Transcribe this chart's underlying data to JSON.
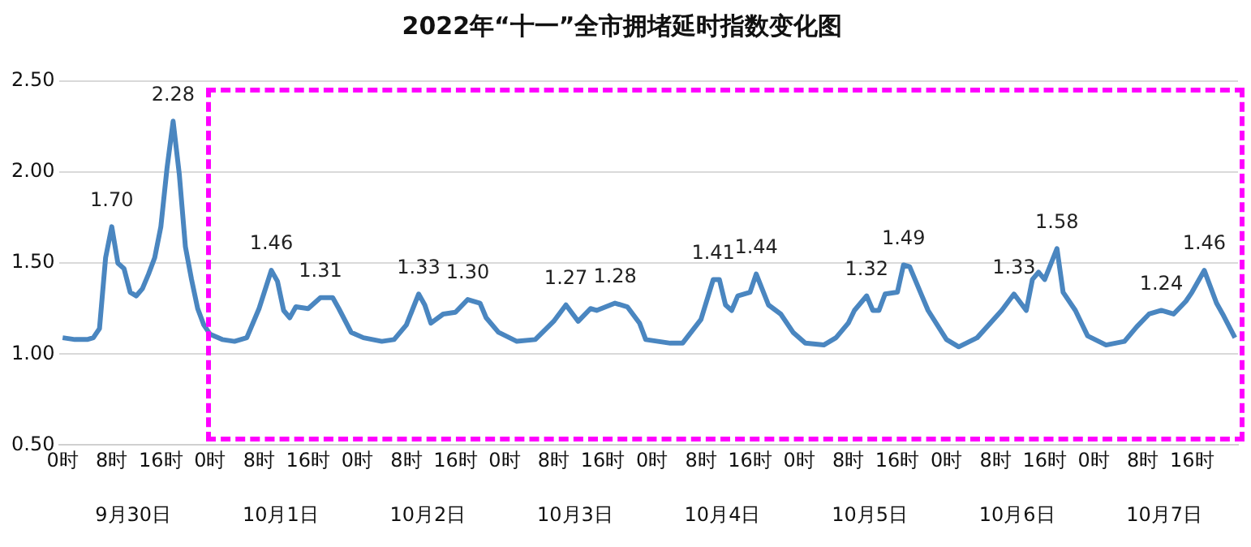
{
  "chart_data": {
    "type": "line",
    "title": "2022年“十一”全市拥堵延时指数变化图",
    "color": "#4a86c0",
    "marker": "none",
    "line_style": "solid",
    "grid": "y",
    "legend": false,
    "x": [
      "2022-09-30T00:00",
      "2022-09-30T02:00",
      "2022-09-30T04:00",
      "2022-09-30T05:00",
      "2022-09-30T06:00",
      "2022-09-30T07:00",
      "2022-09-30T08:00",
      "2022-09-30T09:00",
      "2022-09-30T10:00",
      "2022-09-30T11:00",
      "2022-09-30T12:00",
      "2022-09-30T13:00",
      "2022-09-30T14:00",
      "2022-09-30T15:00",
      "2022-09-30T16:00",
      "2022-09-30T17:00",
      "2022-09-30T18:00",
      "2022-09-30T19:00",
      "2022-09-30T20:00",
      "2022-09-30T21:00",
      "2022-09-30T22:00",
      "2022-09-30T23:00",
      "2022-10-01T00:00",
      "2022-10-01T02:00",
      "2022-10-01T04:00",
      "2022-10-01T06:00",
      "2022-10-01T08:00",
      "2022-10-01T10:00",
      "2022-10-01T11:00",
      "2022-10-01T12:00",
      "2022-10-01T13:00",
      "2022-10-01T14:00",
      "2022-10-01T16:00",
      "2022-10-01T18:00",
      "2022-10-01T20:00",
      "2022-10-01T21:00",
      "2022-10-01T23:00",
      "2022-10-02T01:00",
      "2022-10-02T04:00",
      "2022-10-02T06:00",
      "2022-10-02T08:00",
      "2022-10-02T10:00",
      "2022-10-02T11:00",
      "2022-10-02T12:00",
      "2022-10-02T14:00",
      "2022-10-02T16:00",
      "2022-10-02T18:00",
      "2022-10-02T20:00",
      "2022-10-02T21:00",
      "2022-10-02T23:00",
      "2022-10-03T02:00",
      "2022-10-03T05:00",
      "2022-10-03T08:00",
      "2022-10-03T10:00",
      "2022-10-03T12:00",
      "2022-10-03T14:00",
      "2022-10-03T15:00",
      "2022-10-03T18:00",
      "2022-10-03T20:00",
      "2022-10-03T22:00",
      "2022-10-03T23:00",
      "2022-10-04T03:00",
      "2022-10-04T05:00",
      "2022-10-04T08:00",
      "2022-10-04T10:00",
      "2022-10-04T11:00",
      "2022-10-04T12:00",
      "2022-10-04T13:00",
      "2022-10-04T14:00",
      "2022-10-04T16:00",
      "2022-10-04T17:00",
      "2022-10-04T19:00",
      "2022-10-04T21:00",
      "2022-10-04T23:00",
      "2022-10-05T01:00",
      "2022-10-05T04:00",
      "2022-10-05T06:00",
      "2022-10-05T08:00",
      "2022-10-05T09:00",
      "2022-10-05T11:00",
      "2022-10-05T12:00",
      "2022-10-05T13:00",
      "2022-10-05T14:00",
      "2022-10-05T16:00",
      "2022-10-05T17:00",
      "2022-10-05T18:00",
      "2022-10-05T20:00",
      "2022-10-05T21:00",
      "2022-10-06T00:00",
      "2022-10-06T02:00",
      "2022-10-06T05:00",
      "2022-10-06T09:00",
      "2022-10-06T11:00",
      "2022-10-06T13:00",
      "2022-10-06T14:00",
      "2022-10-06T15:00",
      "2022-10-06T16:00",
      "2022-10-06T18:00",
      "2022-10-06T19:00",
      "2022-10-06T21:00",
      "2022-10-06T23:00",
      "2022-10-07T02:00",
      "2022-10-07T05:00",
      "2022-10-07T07:00",
      "2022-10-07T09:00",
      "2022-10-07T11:00",
      "2022-10-07T13:00",
      "2022-10-07T15:00",
      "2022-10-07T16:00",
      "2022-10-07T18:00",
      "2022-10-07T20:00",
      "2022-10-07T21:00",
      "2022-10-07T23:00"
    ],
    "values": [
      1.09,
      1.08,
      1.08,
      1.09,
      1.14,
      1.53,
      1.7,
      1.5,
      1.47,
      1.34,
      1.32,
      1.36,
      1.44,
      1.53,
      1.7,
      2.02,
      2.28,
      1.99,
      1.59,
      1.41,
      1.25,
      1.16,
      1.11,
      1.08,
      1.07,
      1.09,
      1.25,
      1.46,
      1.4,
      1.24,
      1.2,
      1.26,
      1.25,
      1.31,
      1.31,
      1.25,
      1.12,
      1.09,
      1.07,
      1.08,
      1.16,
      1.33,
      1.27,
      1.17,
      1.22,
      1.23,
      1.3,
      1.28,
      1.2,
      1.12,
      1.07,
      1.08,
      1.18,
      1.27,
      1.18,
      1.25,
      1.24,
      1.28,
      1.26,
      1.17,
      1.08,
      1.06,
      1.06,
      1.19,
      1.41,
      1.41,
      1.27,
      1.24,
      1.32,
      1.34,
      1.44,
      1.27,
      1.22,
      1.12,
      1.06,
      1.05,
      1.09,
      1.17,
      1.24,
      1.32,
      1.24,
      1.24,
      1.33,
      1.34,
      1.49,
      1.48,
      1.32,
      1.24,
      1.08,
      1.04,
      1.09,
      1.24,
      1.33,
      1.24,
      1.41,
      1.45,
      1.41,
      1.58,
      1.34,
      1.24,
      1.1,
      1.05,
      1.07,
      1.15,
      1.22,
      1.24,
      1.22,
      1.29,
      1.34,
      1.46,
      1.28,
      1.22,
      1.09
    ],
    "xlim": [
      "2022-09-29T23:30",
      "2022-10-07T23:30"
    ],
    "xticks": [
      {
        "value": "2022-09-30T00:00",
        "label": "0时"
      },
      {
        "value": "2022-09-30T08:00",
        "label": "8时"
      },
      {
        "value": "2022-09-30T16:00",
        "label": "16时"
      },
      {
        "value": "2022-10-01T00:00",
        "label": "0时"
      },
      {
        "value": "2022-10-01T08:00",
        "label": "8时"
      },
      {
        "value": "2022-10-01T16:00",
        "label": "16时"
      },
      {
        "value": "2022-10-02T00:00",
        "label": "0时"
      },
      {
        "value": "2022-10-02T08:00",
        "label": "8时"
      },
      {
        "value": "2022-10-02T16:00",
        "label": "16时"
      },
      {
        "value": "2022-10-03T00:00",
        "label": "0时"
      },
      {
        "value": "2022-10-03T08:00",
        "label": "8时"
      },
      {
        "value": "2022-10-03T16:00",
        "label": "16时"
      },
      {
        "value": "2022-10-04T00:00",
        "label": "0时"
      },
      {
        "value": "2022-10-04T08:00",
        "label": "8时"
      },
      {
        "value": "2022-10-04T16:00",
        "label": "16时"
      },
      {
        "value": "2022-10-05T00:00",
        "label": "0时"
      },
      {
        "value": "2022-10-05T08:00",
        "label": "8时"
      },
      {
        "value": "2022-10-05T16:00",
        "label": "16时"
      },
      {
        "value": "2022-10-06T00:00",
        "label": "0时"
      },
      {
        "value": "2022-10-06T08:00",
        "label": "8时"
      },
      {
        "value": "2022-10-06T16:00",
        "label": "16时"
      },
      {
        "value": "2022-10-07T00:00",
        "label": "0时"
      },
      {
        "value": "2022-10-07T08:00",
        "label": "8时"
      },
      {
        "value": "2022-10-07T16:00",
        "label": "16时"
      }
    ],
    "x2lim": [
      "2022-09-29T23:30",
      "2022-10-07T23:30"
    ],
    "x2ticks": [
      {
        "value": "2022-09-30T11:30",
        "label": "9月30日"
      },
      {
        "value": "2022-10-01T11:30",
        "label": "10月1日"
      },
      {
        "value": "2022-10-02T11:30",
        "label": "10月2日"
      },
      {
        "value": "2022-10-03T11:30",
        "label": "10月3日"
      },
      {
        "value": "2022-10-04T11:30",
        "label": "10月4日"
      },
      {
        "value": "2022-10-05T11:30",
        "label": "10月5日"
      },
      {
        "value": "2022-10-06T11:30",
        "label": "10月6日"
      },
      {
        "value": "2022-10-07T11:30",
        "label": "10月7日"
      }
    ],
    "ylim": [
      0.5,
      2.5
    ],
    "yticks": [
      {
        "value": 0.5,
        "label": "0.50"
      },
      {
        "value": 1,
        "label": "1.00"
      },
      {
        "value": 1.5,
        "label": "1.50"
      },
      {
        "value": 2,
        "label": "2.00"
      },
      {
        "value": 2.5,
        "label": "2.50"
      }
    ],
    "annotations": [
      {
        "text": "1.70",
        "x": "2022-09-30T08:00",
        "y": 1.7
      },
      {
        "text": "2.28",
        "x": "2022-09-30T18:00",
        "y": 2.28
      },
      {
        "text": "1.46",
        "x": "2022-10-01T10:00",
        "y": 1.46
      },
      {
        "text": "1.31",
        "x": "2022-10-01T18:00",
        "y": 1.31
      },
      {
        "text": "1.33",
        "x": "2022-10-02T10:00",
        "y": 1.33
      },
      {
        "text": "1.30",
        "x": "2022-10-02T18:00",
        "y": 1.3
      },
      {
        "text": "1.27",
        "x": "2022-10-03T10:00",
        "y": 1.27
      },
      {
        "text": "1.28",
        "x": "2022-10-03T18:00",
        "y": 1.28
      },
      {
        "text": "1.41",
        "x": "2022-10-04T10:00",
        "y": 1.41
      },
      {
        "text": "1.44",
        "x": "2022-10-04T17:00",
        "y": 1.44
      },
      {
        "text": "1.32",
        "x": "2022-10-05T11:00",
        "y": 1.32
      },
      {
        "text": "1.49",
        "x": "2022-10-05T17:00",
        "y": 1.49
      },
      {
        "text": "1.33",
        "x": "2022-10-06T11:00",
        "y": 1.33
      },
      {
        "text": "1.58",
        "x": "2022-10-06T18:00",
        "y": 1.58
      },
      {
        "text": "1.24",
        "x": "2022-10-07T11:00",
        "y": 1.24
      },
      {
        "text": "1.46",
        "x": "2022-10-07T18:00",
        "y": 1.46
      }
    ]
  }
}
